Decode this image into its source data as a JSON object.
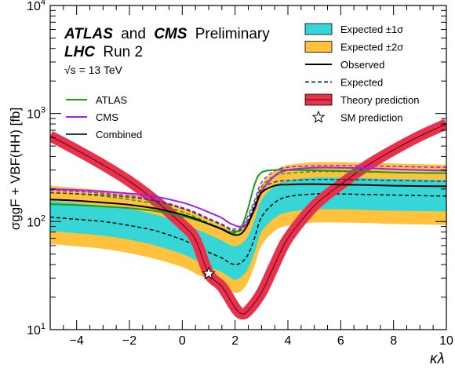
{
  "header": {
    "experiments_a": "ATLAS",
    "and": "and",
    "experiments_b": "CMS",
    "status": "Preliminary",
    "collider": "LHC",
    "run": "Run 2",
    "energy": "√s = 13 TeV"
  },
  "chart_data": {
    "type": "line",
    "title": "",
    "xlabel": "κλ",
    "ylabel": "σggF + VBF(HH) [fb]",
    "x_range": [
      -5,
      10
    ],
    "y_range": [
      10,
      10000
    ],
    "y_scale": "log",
    "x_ticks": [
      -4,
      -2,
      0,
      2,
      4,
      6,
      8,
      10
    ],
    "x_tick_labels": [
      "−4",
      "−2",
      "0",
      "2",
      "4",
      "6",
      "8",
      "10"
    ],
    "y_ticks": [
      10,
      100,
      1000,
      10000
    ],
    "y_tick_labels": [
      {
        "base": "10",
        "exp": "1"
      },
      {
        "base": "10",
        "exp": "2"
      },
      {
        "base": "10",
        "exp": "3"
      },
      {
        "base": "10",
        "exp": "4"
      }
    ],
    "grid": false,
    "colors": {
      "band_1sigma": "#36d6d6",
      "band_2sigma": "#ffc23d",
      "theory": "#e8324d",
      "atlas": "#1a9e1a",
      "cms": "#a020f0",
      "combined": "#2e3a4a",
      "black": "#000000"
    },
    "legend_right": {
      "placement": "top-right",
      "entries": [
        {
          "label": "Expected ±1σ",
          "style": "band1"
        },
        {
          "label": "Expected ±2σ",
          "style": "band2"
        },
        {
          "label": "Observed",
          "style": "solid"
        },
        {
          "label": "Expected",
          "style": "dashed"
        },
        {
          "label": "Theory prediction",
          "style": "theory"
        },
        {
          "label": "SM prediction",
          "style": "star"
        }
      ]
    },
    "legend_left": {
      "placement": "top-left",
      "entries": [
        {
          "label": "ATLAS",
          "color": "#1a9e1a"
        },
        {
          "label": "CMS",
          "color": "#a020f0"
        },
        {
          "label": "Combined",
          "color": "#2e3a4a"
        }
      ]
    },
    "x": [
      -5,
      -4,
      -3,
      -2,
      -1,
      0,
      0.5,
      1,
      1.5,
      1.75,
      2,
      2.25,
      2.5,
      2.75,
      3,
      3.5,
      4,
      5,
      6,
      7,
      8,
      9,
      10
    ],
    "expected_band": {
      "median": [
        110,
        105,
        100,
        92,
        82,
        68,
        60,
        52,
        46,
        42,
        40,
        42,
        50,
        72,
        110,
        150,
        170,
        180,
        180,
        178,
        176,
        174,
        172
      ],
      "minus1": [
        82,
        78,
        74,
        68,
        60,
        50,
        44,
        38,
        34,
        31,
        29,
        31,
        37,
        53,
        80,
        108,
        122,
        130,
        130,
        128,
        126,
        125,
        124
      ],
      "plus1": [
        155,
        148,
        140,
        130,
        116,
        97,
        86,
        76,
        67,
        62,
        59,
        63,
        74,
        105,
        158,
        213,
        240,
        255,
        255,
        252,
        248,
        245,
        242
      ],
      "minus2": [
        62,
        59,
        56,
        51,
        45,
        38,
        33,
        29,
        25,
        23,
        22,
        23,
        28,
        40,
        60,
        82,
        92,
        98,
        98,
        97,
        95,
        94,
        93
      ],
      "plus2": [
        215,
        205,
        195,
        182,
        162,
        135,
        120,
        106,
        93,
        86,
        82,
        87,
        103,
        146,
        220,
        296,
        333,
        354,
        354,
        350,
        345,
        340,
        336
      ]
    },
    "theory": {
      "name": "Theory prediction",
      "x": [
        -5,
        -4,
        -3,
        -2,
        -1,
        0,
        0.5,
        1,
        1.5,
        2,
        2.25,
        2.5,
        3,
        3.5,
        4,
        5,
        6,
        7,
        8,
        9,
        10
      ],
      "values": [
        620,
        460,
        335,
        236,
        155,
        94,
        68,
        33,
        25,
        16,
        14,
        15,
        22,
        40,
        70,
        140,
        220,
        330,
        460,
        620,
        800
      ]
    },
    "series": [
      {
        "name": "ATLAS",
        "observed": [
          145,
          142,
          138,
          133,
          125,
          112,
          104,
          95,
          86,
          81,
          80,
          90,
          135,
          225,
          285,
          300,
          300,
          298,
          294,
          290,
          285,
          282,
          280
        ],
        "expected": [
          185,
          180,
          172,
          160,
          145,
          123,
          110,
          97,
          86,
          80,
          78,
          85,
          108,
          150,
          210,
          265,
          280,
          290,
          290,
          288,
          285,
          282,
          280
        ]
      },
      {
        "name": "CMS",
        "observed": [
          200,
          196,
          190,
          182,
          170,
          150,
          137,
          122,
          108,
          98,
          92,
          90,
          100,
          130,
          190,
          265,
          300,
          315,
          315,
          312,
          305,
          300,
          296
        ],
        "expected": [
          195,
          190,
          183,
          173,
          158,
          135,
          122,
          107,
          95,
          88,
          85,
          90,
          115,
          160,
          230,
          295,
          318,
          328,
          330,
          328,
          324,
          320,
          318
        ]
      },
      {
        "name": "Combined",
        "observed": [
          160,
          156,
          150,
          143,
          132,
          116,
          106,
          95,
          85,
          79,
          75,
          78,
          96,
          135,
          185,
          215,
          220,
          222,
          220,
          218,
          215,
          213,
          212
        ],
        "expected": [
          185,
          181,
          176,
          168,
          155,
          132,
          119,
          105,
          93,
          86,
          82,
          85,
          103,
          145,
          200,
          232,
          240,
          245,
          245,
          243,
          240,
          238,
          236
        ]
      }
    ],
    "sm_prediction": {
      "x": 1,
      "y": 33
    }
  }
}
